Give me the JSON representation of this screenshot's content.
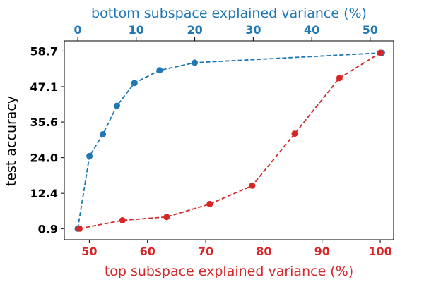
{
  "chart_data": {
    "type": "line",
    "ylabel": "test accuracy",
    "y_ticks": [
      "0.9",
      "12.4",
      "24.0",
      "35.6",
      "47.1",
      "58.7"
    ],
    "ylim": [
      -2.7,
      62.0
    ],
    "grid": false,
    "top_axis": {
      "label": "bottom subspace explained variance (%)",
      "ticks": [
        0,
        10,
        20,
        30,
        40,
        50
      ],
      "xlim": [
        -2.3,
        54.0
      ],
      "color": "#1f77b4"
    },
    "bottom_axis": {
      "label": "top subspace explained variance (%)",
      "ticks": [
        50,
        60,
        70,
        80,
        90,
        100
      ],
      "xlim": [
        45.7,
        102.3
      ],
      "color": "#d62728"
    },
    "series": [
      {
        "axis": "top",
        "color": "#1f77b4",
        "x": [
          0,
          2,
          4.3,
          6.7,
          9.7,
          14,
          20,
          52
        ],
        "y": [
          0.9,
          24.5,
          31.6,
          40.9,
          48.3,
          52.4,
          54.9,
          58.1
        ]
      },
      {
        "axis": "bottom",
        "color": "#d62728",
        "x": [
          48.3,
          55.7,
          63.3,
          70.7,
          78.0,
          85.3,
          93.0,
          100
        ],
        "y": [
          0.9,
          3.6,
          4.7,
          8.9,
          14.9,
          31.8,
          49.9,
          58.1
        ]
      }
    ]
  }
}
